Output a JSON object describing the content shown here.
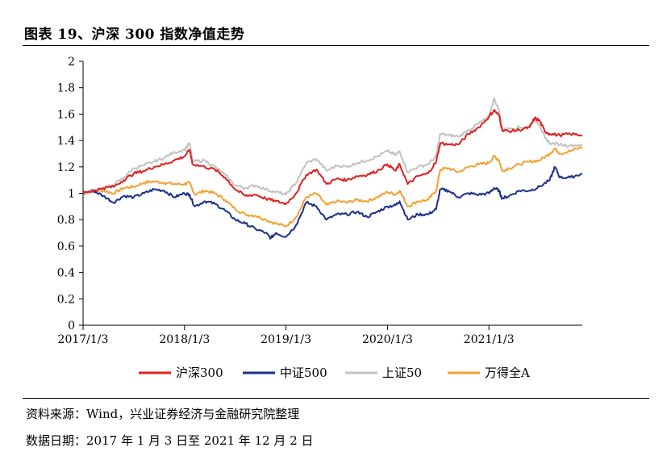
{
  "header": {
    "title": "图表 19、沪深 300 指数净值走势"
  },
  "footer": {
    "source": "资料来源：Wind，兴业证券经济与金融研究院整理",
    "period": "数据日期：2017 年 1 月 3 日至 2021 年 12 月 2 日"
  },
  "chart_data": {
    "type": "line",
    "title": "图表 19、沪深 300 指数净值走势",
    "xlabel": "",
    "ylabel": "",
    "ylim": [
      0,
      2
    ],
    "yticks": [
      "0",
      "0.2",
      "0.4",
      "0.6",
      "0.8",
      "1",
      "1.2",
      "1.4",
      "1.6",
      "1.8",
      "2"
    ],
    "xlim": [
      2017.0,
      2021.92
    ],
    "xticks": [
      {
        "label": "2017/1/3",
        "x": 2017.0
      },
      {
        "label": "2018/1/3",
        "x": 2018.0
      },
      {
        "label": "2019/1/3",
        "x": 2019.0
      },
      {
        "label": "2020/1/3",
        "x": 2020.0
      },
      {
        "label": "2021/1/3",
        "x": 2021.0
      }
    ],
    "grid": false,
    "legend_position": "bottom",
    "series": [
      {
        "name": "沪深300",
        "color": "#e02020",
        "points": [
          [
            2017.0,
            1.0
          ],
          [
            2017.1,
            1.02
          ],
          [
            2017.2,
            1.04
          ],
          [
            2017.3,
            1.05
          ],
          [
            2017.4,
            1.1
          ],
          [
            2017.5,
            1.15
          ],
          [
            2017.6,
            1.17
          ],
          [
            2017.7,
            1.2
          ],
          [
            2017.8,
            1.22
          ],
          [
            2017.9,
            1.25
          ],
          [
            2018.0,
            1.28
          ],
          [
            2018.05,
            1.33
          ],
          [
            2018.08,
            1.22
          ],
          [
            2018.2,
            1.2
          ],
          [
            2018.3,
            1.18
          ],
          [
            2018.4,
            1.12
          ],
          [
            2018.5,
            1.03
          ],
          [
            2018.6,
            0.98
          ],
          [
            2018.7,
            0.99
          ],
          [
            2018.8,
            0.96
          ],
          [
            2018.9,
            0.94
          ],
          [
            2019.0,
            0.92
          ],
          [
            2019.1,
            1.0
          ],
          [
            2019.2,
            1.14
          ],
          [
            2019.3,
            1.18
          ],
          [
            2019.4,
            1.07
          ],
          [
            2019.5,
            1.11
          ],
          [
            2019.6,
            1.1
          ],
          [
            2019.7,
            1.13
          ],
          [
            2019.8,
            1.14
          ],
          [
            2019.9,
            1.17
          ],
          [
            2020.0,
            1.22
          ],
          [
            2020.08,
            1.17
          ],
          [
            2020.12,
            1.22
          ],
          [
            2020.2,
            1.07
          ],
          [
            2020.3,
            1.13
          ],
          [
            2020.4,
            1.15
          ],
          [
            2020.48,
            1.24
          ],
          [
            2020.52,
            1.38
          ],
          [
            2020.6,
            1.37
          ],
          [
            2020.7,
            1.37
          ],
          [
            2020.8,
            1.45
          ],
          [
            2020.9,
            1.5
          ],
          [
            2021.0,
            1.58
          ],
          [
            2021.05,
            1.63
          ],
          [
            2021.1,
            1.59
          ],
          [
            2021.13,
            1.48
          ],
          [
            2021.2,
            1.47
          ],
          [
            2021.3,
            1.48
          ],
          [
            2021.4,
            1.5
          ],
          [
            2021.45,
            1.57
          ],
          [
            2021.5,
            1.55
          ],
          [
            2021.55,
            1.47
          ],
          [
            2021.6,
            1.45
          ],
          [
            2021.7,
            1.44
          ],
          [
            2021.8,
            1.45
          ],
          [
            2021.92,
            1.44
          ]
        ]
      },
      {
        "name": "中证500",
        "color": "#1a2f8a",
        "points": [
          [
            2017.0,
            1.0
          ],
          [
            2017.1,
            1.02
          ],
          [
            2017.2,
            0.98
          ],
          [
            2017.3,
            0.93
          ],
          [
            2017.4,
            0.98
          ],
          [
            2017.5,
            0.97
          ],
          [
            2017.6,
            1.0
          ],
          [
            2017.7,
            1.03
          ],
          [
            2017.8,
            1.02
          ],
          [
            2017.9,
            0.97
          ],
          [
            2018.0,
            1.0
          ],
          [
            2018.05,
            0.99
          ],
          [
            2018.1,
            0.9
          ],
          [
            2018.2,
            0.94
          ],
          [
            2018.3,
            0.92
          ],
          [
            2018.4,
            0.87
          ],
          [
            2018.5,
            0.8
          ],
          [
            2018.6,
            0.77
          ],
          [
            2018.7,
            0.73
          ],
          [
            2018.8,
            0.7
          ],
          [
            2018.85,
            0.66
          ],
          [
            2018.9,
            0.7
          ],
          [
            2019.0,
            0.67
          ],
          [
            2019.1,
            0.76
          ],
          [
            2019.2,
            0.93
          ],
          [
            2019.3,
            0.9
          ],
          [
            2019.4,
            0.8
          ],
          [
            2019.5,
            0.84
          ],
          [
            2019.6,
            0.84
          ],
          [
            2019.7,
            0.86
          ],
          [
            2019.8,
            0.82
          ],
          [
            2019.9,
            0.86
          ],
          [
            2020.0,
            0.9
          ],
          [
            2020.08,
            0.91
          ],
          [
            2020.12,
            0.94
          ],
          [
            2020.2,
            0.8
          ],
          [
            2020.3,
            0.84
          ],
          [
            2020.4,
            0.84
          ],
          [
            2020.48,
            0.88
          ],
          [
            2020.52,
            1.03
          ],
          [
            2020.6,
            1.02
          ],
          [
            2020.7,
            0.97
          ],
          [
            2020.8,
            1.0
          ],
          [
            2020.9,
            0.99
          ],
          [
            2021.0,
            1.0
          ],
          [
            2021.05,
            1.04
          ],
          [
            2021.1,
            1.02
          ],
          [
            2021.13,
            0.96
          ],
          [
            2021.2,
            0.98
          ],
          [
            2021.3,
            1.02
          ],
          [
            2021.4,
            1.02
          ],
          [
            2021.5,
            1.05
          ],
          [
            2021.6,
            1.1
          ],
          [
            2021.65,
            1.2
          ],
          [
            2021.7,
            1.12
          ],
          [
            2021.8,
            1.12
          ],
          [
            2021.92,
            1.15
          ]
        ]
      },
      {
        "name": "上证50",
        "color": "#c2c2c2",
        "points": [
          [
            2017.0,
            1.0
          ],
          [
            2017.1,
            1.02
          ],
          [
            2017.2,
            1.04
          ],
          [
            2017.3,
            1.06
          ],
          [
            2017.4,
            1.12
          ],
          [
            2017.5,
            1.19
          ],
          [
            2017.6,
            1.21
          ],
          [
            2017.7,
            1.24
          ],
          [
            2017.8,
            1.27
          ],
          [
            2017.9,
            1.31
          ],
          [
            2018.0,
            1.33
          ],
          [
            2018.05,
            1.38
          ],
          [
            2018.08,
            1.24
          ],
          [
            2018.2,
            1.25
          ],
          [
            2018.3,
            1.2
          ],
          [
            2018.4,
            1.14
          ],
          [
            2018.5,
            1.06
          ],
          [
            2018.6,
            1.04
          ],
          [
            2018.7,
            1.06
          ],
          [
            2018.8,
            1.03
          ],
          [
            2018.9,
            1.01
          ],
          [
            2019.0,
            0.99
          ],
          [
            2019.1,
            1.08
          ],
          [
            2019.2,
            1.23
          ],
          [
            2019.3,
            1.26
          ],
          [
            2019.4,
            1.17
          ],
          [
            2019.5,
            1.21
          ],
          [
            2019.6,
            1.2
          ],
          [
            2019.7,
            1.23
          ],
          [
            2019.8,
            1.25
          ],
          [
            2019.9,
            1.28
          ],
          [
            2020.0,
            1.32
          ],
          [
            2020.08,
            1.29
          ],
          [
            2020.12,
            1.32
          ],
          [
            2020.2,
            1.16
          ],
          [
            2020.3,
            1.2
          ],
          [
            2020.4,
            1.22
          ],
          [
            2020.48,
            1.28
          ],
          [
            2020.52,
            1.45
          ],
          [
            2020.6,
            1.44
          ],
          [
            2020.7,
            1.43
          ],
          [
            2020.8,
            1.48
          ],
          [
            2020.9,
            1.53
          ],
          [
            2021.0,
            1.58
          ],
          [
            2021.05,
            1.72
          ],
          [
            2021.1,
            1.63
          ],
          [
            2021.13,
            1.48
          ],
          [
            2021.2,
            1.49
          ],
          [
            2021.3,
            1.5
          ],
          [
            2021.4,
            1.5
          ],
          [
            2021.45,
            1.56
          ],
          [
            2021.5,
            1.52
          ],
          [
            2021.55,
            1.42
          ],
          [
            2021.6,
            1.38
          ],
          [
            2021.7,
            1.37
          ],
          [
            2021.8,
            1.36
          ],
          [
            2021.92,
            1.37
          ]
        ]
      },
      {
        "name": "万得全A",
        "color": "#f5a030",
        "points": [
          [
            2017.0,
            1.0
          ],
          [
            2017.1,
            1.02
          ],
          [
            2017.2,
            1.02
          ],
          [
            2017.3,
            1.0
          ],
          [
            2017.4,
            1.04
          ],
          [
            2017.5,
            1.05
          ],
          [
            2017.6,
            1.08
          ],
          [
            2017.7,
            1.09
          ],
          [
            2017.8,
            1.08
          ],
          [
            2017.9,
            1.07
          ],
          [
            2018.0,
            1.07
          ],
          [
            2018.05,
            1.08
          ],
          [
            2018.1,
            0.99
          ],
          [
            2018.2,
            1.02
          ],
          [
            2018.3,
            1.0
          ],
          [
            2018.4,
            0.95
          ],
          [
            2018.5,
            0.88
          ],
          [
            2018.6,
            0.84
          ],
          [
            2018.7,
            0.83
          ],
          [
            2018.8,
            0.8
          ],
          [
            2018.9,
            0.77
          ],
          [
            2019.0,
            0.75
          ],
          [
            2019.1,
            0.82
          ],
          [
            2019.2,
            0.97
          ],
          [
            2019.3,
            1.0
          ],
          [
            2019.4,
            0.91
          ],
          [
            2019.5,
            0.94
          ],
          [
            2019.6,
            0.93
          ],
          [
            2019.7,
            0.95
          ],
          [
            2019.8,
            0.94
          ],
          [
            2019.9,
            0.97
          ],
          [
            2020.0,
            1.01
          ],
          [
            2020.08,
            0.99
          ],
          [
            2020.12,
            1.02
          ],
          [
            2020.2,
            0.9
          ],
          [
            2020.3,
            0.94
          ],
          [
            2020.4,
            0.95
          ],
          [
            2020.48,
            1.02
          ],
          [
            2020.52,
            1.18
          ],
          [
            2020.6,
            1.19
          ],
          [
            2020.7,
            1.16
          ],
          [
            2020.8,
            1.2
          ],
          [
            2020.9,
            1.22
          ],
          [
            2021.0,
            1.23
          ],
          [
            2021.05,
            1.28
          ],
          [
            2021.1,
            1.25
          ],
          [
            2021.13,
            1.17
          ],
          [
            2021.2,
            1.19
          ],
          [
            2021.3,
            1.22
          ],
          [
            2021.4,
            1.24
          ],
          [
            2021.5,
            1.25
          ],
          [
            2021.6,
            1.3
          ],
          [
            2021.65,
            1.34
          ],
          [
            2021.7,
            1.3
          ],
          [
            2021.8,
            1.32
          ],
          [
            2021.92,
            1.35
          ]
        ]
      }
    ]
  }
}
